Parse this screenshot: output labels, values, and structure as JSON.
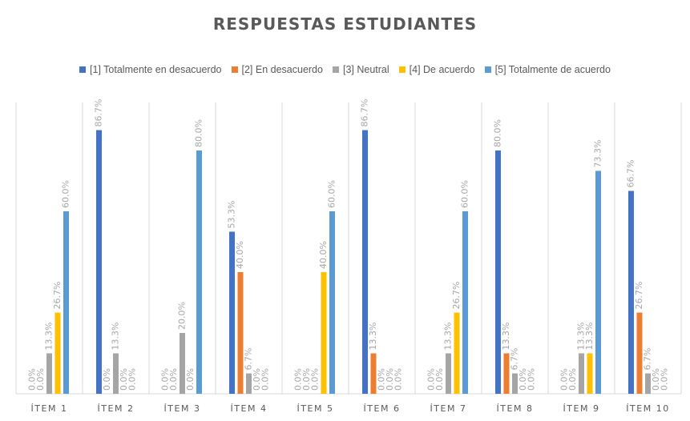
{
  "chart_data": {
    "type": "bar",
    "title": "RESPUESTAS ESTUDIANTES",
    "categories": [
      "ÍTEM 1",
      "ÍTEM 2",
      "ÍTEM 3",
      "ÍTEM 4",
      "ÍTEM 5",
      "ÍTEM 6",
      "ÍTEM 7",
      "ÍTEM 8",
      "ÍTEM 9",
      "ÍTEM 10"
    ],
    "series": [
      {
        "name": "[1] Totalmente en desacuerdo",
        "color": "#4472C4",
        "values": [
          0.0,
          86.7,
          0.0,
          53.3,
          0.0,
          86.7,
          0.0,
          80.0,
          0.0,
          66.7
        ],
        "labels": [
          "0.0%",
          "86.7%",
          "0.0%",
          "53.3%",
          "0.0%",
          "86.7%",
          "0.0%",
          "80.0%",
          "0.0%",
          "66.7%"
        ]
      },
      {
        "name": "[2] En desacuerdo",
        "color": "#ED7D31",
        "values": [
          0.0,
          0.0,
          0.0,
          40.0,
          0.0,
          13.3,
          0.0,
          13.3,
          0.0,
          26.7
        ],
        "labels": [
          "0.0%",
          "0.0%",
          "0.0%",
          "40.0%",
          "0.0%",
          "13.3%",
          "0.0%",
          "13.3%",
          "0.0%",
          "26.7%"
        ]
      },
      {
        "name": "[3] Neutral",
        "color": "#A5A5A5",
        "values": [
          13.3,
          13.3,
          20.0,
          6.7,
          0.0,
          0.0,
          13.3,
          6.7,
          13.3,
          6.7
        ],
        "labels": [
          "13.3%",
          "13.3%",
          "20.0%",
          "6.7%",
          "0.0%",
          "0.0%",
          "13.3%",
          "6.7%",
          "13.3%",
          "6.7%"
        ]
      },
      {
        "name": "[4] De acuerdo",
        "color": "#FFC000",
        "values": [
          26.7,
          0.0,
          0.0,
          0.0,
          40.0,
          0.0,
          26.7,
          0.0,
          13.3,
          0.0
        ],
        "labels": [
          "26.7%",
          "0.0%",
          "0.0%",
          "0.0%",
          "40.0%",
          "0.0%",
          "26.7%",
          "0.0%",
          "13.3%",
          "0.0%"
        ]
      },
      {
        "name": "[5] Totalmente de acuerdo",
        "color": "#5B9BD5",
        "values": [
          60.0,
          0.0,
          80.0,
          0.0,
          60.0,
          0.0,
          60.0,
          0.0,
          73.3,
          0.0
        ],
        "labels": [
          "60.0%",
          "0.0%",
          "80.0%",
          "0.0%",
          "60.0%",
          "0.0%",
          "60.0%",
          "0.0%",
          "73.3%",
          "0.0%"
        ]
      }
    ],
    "ylim": [
      0,
      100
    ],
    "grid": "vertical separators between items",
    "legend_position": "top"
  }
}
